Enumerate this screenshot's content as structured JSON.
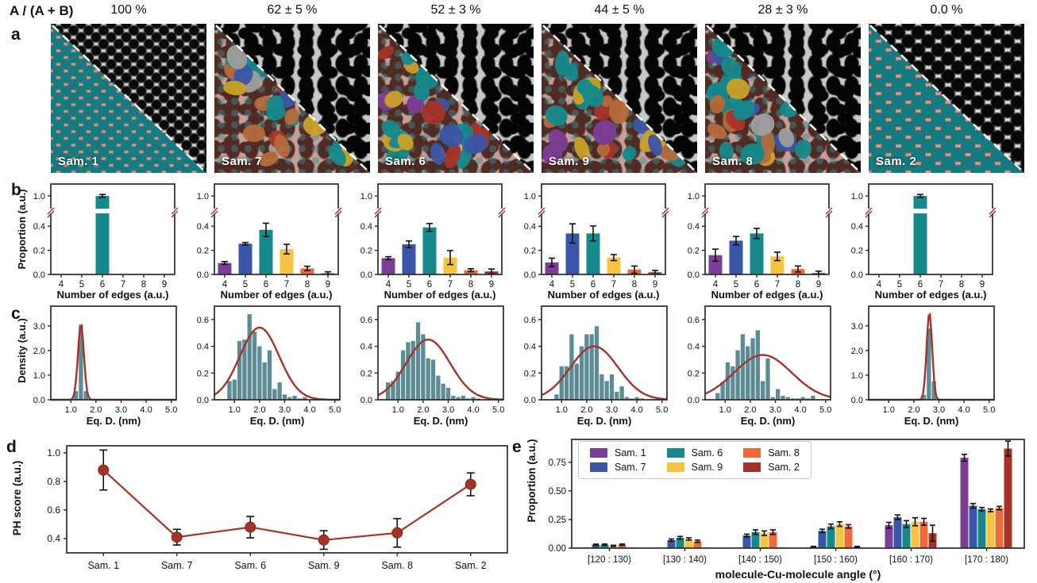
{
  "header": {
    "ratio_label": "A / (A + B)",
    "percentages": [
      "100 %",
      "62 ± 5 %",
      "52 ± 3 %",
      "44 ± 5 %",
      "28 ± 3 %",
      "0.0 %"
    ]
  },
  "panel_letters": {
    "a": "a",
    "b": "b",
    "c": "c",
    "d": "d",
    "e": "e"
  },
  "colors": {
    "samples": {
      "Sam. 1": "#7b3d96",
      "Sam. 7": "#3a56a8",
      "Sam. 6": "#15898c",
      "Sam. 9": "#f7c440",
      "Sam. 8": "#ee6a3b",
      "Sam. 2": "#a43429"
    },
    "edges": {
      "4": "#7b3d96",
      "5": "#3a56a8",
      "6": "#15898c",
      "7": "#f7c440",
      "8": "#ee6a3b",
      "9": "#a43429"
    },
    "histogram_bar": "#5d8c96",
    "fit_curve": "#a43429",
    "axis": "#2a2a2a",
    "error_bar": "#111111",
    "break_mark": "#a43429",
    "overlay_teal": "#137c82"
  },
  "panel_a": {
    "tiles": [
      {
        "label": "Sam. 1",
        "base": "fine",
        "overlay": "uniform",
        "overlay_color": "#137c82"
      },
      {
        "label": "Sam. 7",
        "base": "coarse",
        "overlay": "mixed",
        "blob_colors": [
          "#15898c",
          "#15898c",
          "#15898c",
          "#a43429",
          "#a43429",
          "#c8a227",
          "#c8a227",
          "#3a56a8",
          "#7b3d96",
          "#b56a3a",
          "#9e9e9e"
        ]
      },
      {
        "label": "Sam. 6",
        "base": "coarse",
        "overlay": "mixed",
        "blob_colors": [
          "#15898c",
          "#15898c",
          "#15898c",
          "#15898c",
          "#a43429",
          "#a43429",
          "#c8a227",
          "#c8a227",
          "#3a56a8",
          "#7b3d96"
        ]
      },
      {
        "label": "Sam. 9",
        "base": "coarse",
        "overlay": "mixed",
        "blob_colors": [
          "#15898c",
          "#15898c",
          "#15898c",
          "#a43429",
          "#a43429",
          "#c8a227",
          "#3a56a8",
          "#b56a3a",
          "#7b3d96"
        ]
      },
      {
        "label": "Sam. 8",
        "base": "coarse",
        "overlay": "mixed",
        "blob_colors": [
          "#15898c",
          "#15898c",
          "#a43429",
          "#b56a3a",
          "#b56a3a",
          "#c8a227",
          "#3a56a8",
          "#9e9e9e",
          "#7b3d96"
        ]
      },
      {
        "label": "Sam. 2",
        "base": "round",
        "overlay": "uniform",
        "overlay_color": "#137c82"
      }
    ]
  },
  "chart_data": [
    {
      "panel": "b",
      "type": "bar",
      "sample": "Sam. 1",
      "categories": [
        4,
        5,
        6,
        7,
        8,
        9
      ],
      "values": [
        0,
        0,
        1.0,
        0,
        0,
        0
      ],
      "errors": [
        0,
        0,
        0.012,
        0,
        0,
        0
      ],
      "xlabel": "Number of edges (a.u.)",
      "ylabel": "Proportion (a.u.)",
      "yticks": [
        0.0,
        0.2,
        0.4,
        1.0
      ],
      "axis_break": [
        0.5,
        0.9
      ]
    },
    {
      "panel": "b",
      "type": "bar",
      "sample": "Sam. 7",
      "categories": [
        4,
        5,
        6,
        7,
        8,
        9
      ],
      "values": [
        0.095,
        0.255,
        0.37,
        0.21,
        0.05,
        0.01
      ],
      "errors": [
        0.012,
        0.01,
        0.055,
        0.04,
        0.018,
        0.012
      ],
      "xlabel": "Number of edges (a.u.)",
      "yticks": [
        0.0,
        0.2,
        0.4,
        1.0
      ],
      "axis_break": [
        0.5,
        0.9
      ]
    },
    {
      "panel": "b",
      "type": "bar",
      "sample": "Sam. 6",
      "categories": [
        4,
        5,
        6,
        7,
        8,
        9
      ],
      "values": [
        0.135,
        0.25,
        0.39,
        0.14,
        0.035,
        0.025
      ],
      "errors": [
        0.012,
        0.028,
        0.032,
        0.058,
        0.012,
        0.02
      ],
      "xlabel": "Number of edges (a.u.)",
      "yticks": [
        0.0,
        0.2,
        0.4,
        1.0
      ],
      "axis_break": [
        0.5,
        0.9
      ]
    },
    {
      "panel": "b",
      "type": "bar",
      "sample": "Sam. 9",
      "categories": [
        4,
        5,
        6,
        7,
        8,
        9
      ],
      "values": [
        0.1,
        0.34,
        0.34,
        0.14,
        0.04,
        0.018
      ],
      "errors": [
        0.035,
        0.08,
        0.062,
        0.025,
        0.03,
        0.015
      ],
      "xlabel": "Number of edges (a.u.)",
      "yticks": [
        0.0,
        0.2,
        0.4,
        1.0
      ],
      "axis_break": [
        0.5,
        0.9
      ]
    },
    {
      "panel": "b",
      "type": "bar",
      "sample": "Sam. 8",
      "categories": [
        4,
        5,
        6,
        7,
        8,
        9
      ],
      "values": [
        0.16,
        0.28,
        0.34,
        0.15,
        0.045,
        0.012
      ],
      "errors": [
        0.05,
        0.035,
        0.042,
        0.035,
        0.025,
        0.015
      ],
      "xlabel": "Number of edges (a.u.)",
      "yticks": [
        0.0,
        0.2,
        0.4,
        1.0
      ],
      "axis_break": [
        0.5,
        0.9
      ]
    },
    {
      "panel": "b",
      "type": "bar",
      "sample": "Sam. 2",
      "categories": [
        4,
        5,
        6,
        7,
        8,
        9
      ],
      "values": [
        0,
        0,
        1.0,
        0,
        0,
        0
      ],
      "errors": [
        0,
        0,
        0.012,
        0,
        0,
        0
      ],
      "xlabel": "Number of edges (a.u.)",
      "yticks": [
        0.0,
        0.2,
        0.4,
        1.0
      ],
      "axis_break": [
        0.5,
        0.9
      ]
    },
    {
      "panel": "c",
      "type": "histogram",
      "sample": "Sam. 1",
      "bin_start": 1.1,
      "bin_width": 0.2,
      "heights": [
        0.35,
        3.05,
        0.35
      ],
      "gauss": {
        "amp": 3.05,
        "mu": 1.4,
        "sigma": 0.12
      },
      "xlabel": "Eq. D. (nm)",
      "ylabel": "Density (a.u.)",
      "xticks": [
        1.0,
        2.0,
        3.0,
        4.0,
        5.0
      ],
      "yticks": [
        0.0,
        1.0,
        2.0,
        3.0
      ],
      "ymax": 3.8,
      "xlim": [
        0.2,
        5.2
      ]
    },
    {
      "panel": "c",
      "type": "histogram",
      "sample": "Sam. 7",
      "bin_start": 0.7,
      "bin_width": 0.2,
      "heights": [
        0.14,
        0.15,
        0.44,
        0.45,
        0.64,
        0.51,
        0.4,
        0.28,
        0.37,
        0.08,
        0.13,
        0.04,
        0.02,
        0.03,
        0.01,
        0.02
      ],
      "gauss": {
        "amp": 0.54,
        "mu": 2.0,
        "sigma": 0.78
      },
      "xlabel": "Eq. D. (nm)",
      "xticks": [
        1.0,
        2.0,
        3.0,
        4.0,
        5.0
      ],
      "yticks": [
        0.0,
        0.2,
        0.4,
        0.6
      ],
      "ymax": 0.7,
      "xlim": [
        0.2,
        5.2
      ]
    },
    {
      "panel": "c",
      "type": "histogram",
      "sample": "Sam. 6",
      "bin_start": 0.5,
      "bin_width": 0.2,
      "heights": [
        0.13,
        0.14,
        0.21,
        0.37,
        0.43,
        0.44,
        0.58,
        0.49,
        0.31,
        0.3,
        0.18,
        0.12,
        0.09,
        0.03,
        0.02,
        0.03,
        0.01,
        0.02,
        0.01
      ],
      "gauss": {
        "amp": 0.45,
        "mu": 2.2,
        "sigma": 0.88
      },
      "xlabel": "Eq. D. (nm)",
      "xticks": [
        1.0,
        2.0,
        3.0,
        4.0,
        5.0
      ],
      "yticks": [
        0.0,
        0.2,
        0.4,
        0.6
      ],
      "ymax": 0.7,
      "xlim": [
        0.2,
        5.2
      ]
    },
    {
      "panel": "c",
      "type": "histogram",
      "sample": "Sam. 9",
      "bin_start": 0.7,
      "bin_width": 0.2,
      "heights": [
        0.04,
        0.25,
        0.25,
        0.49,
        0.27,
        0.4,
        0.49,
        0.49,
        0.55,
        0.19,
        0.14,
        0.19,
        0.06,
        0.1,
        0.02,
        0.01,
        0.02,
        0.01
      ],
      "gauss": {
        "amp": 0.4,
        "mu": 2.3,
        "sigma": 0.95
      },
      "xlabel": "Eq. D. (nm)",
      "xticks": [
        1.0,
        2.0,
        3.0,
        4.0,
        5.0
      ],
      "yticks": [
        0.0,
        0.2,
        0.4,
        0.6
      ],
      "ymax": 0.7,
      "xlim": [
        0.2,
        5.2
      ]
    },
    {
      "panel": "c",
      "type": "histogram",
      "sample": "Sam. 8",
      "bin_start": 0.6,
      "bin_width": 0.2,
      "heights": [
        0.05,
        0.13,
        0.28,
        0.25,
        0.37,
        0.49,
        0.4,
        0.46,
        0.52,
        0.14,
        0.31,
        0.02,
        0.08,
        0.03,
        0.02,
        0.01,
        0.01,
        0.02,
        0.01,
        0.03
      ],
      "gauss": {
        "amp": 0.335,
        "mu": 2.5,
        "sigma": 1.15
      },
      "xlabel": "Eq. D. (nm)",
      "xticks": [
        1.0,
        2.0,
        3.0,
        4.0,
        5.0
      ],
      "yticks": [
        0.0,
        0.2,
        0.4,
        0.6
      ],
      "ymax": 0.7,
      "xlim": [
        0.2,
        5.2
      ]
    },
    {
      "panel": "c",
      "type": "histogram",
      "sample": "Sam. 2",
      "bin_start": 2.3,
      "bin_width": 0.2,
      "heights": [
        0.2,
        2.9,
        0.75
      ],
      "gauss": {
        "amp": 3.55,
        "mu": 2.62,
        "sigma": 0.11
      },
      "xlabel": "Eq. D. (nm)",
      "xticks": [
        1.0,
        2.0,
        3.0,
        4.0,
        5.0
      ],
      "yticks": [
        0.0,
        1.0,
        2.0,
        3.0
      ],
      "ymax": 3.8,
      "xlim": [
        0.2,
        5.2
      ]
    },
    {
      "panel": "d",
      "type": "line",
      "categories": [
        "Sam. 1",
        "Sam. 7",
        "Sam. 6",
        "Sam. 9",
        "Sam. 8",
        "Sam. 2"
      ],
      "values": [
        0.88,
        0.41,
        0.48,
        0.39,
        0.44,
        0.78
      ],
      "errors": [
        0.14,
        0.055,
        0.075,
        0.065,
        0.1,
        0.08
      ],
      "ylabel": "PH score (a.u.)",
      "yticks": [
        0.4,
        0.6,
        0.8,
        1.0
      ],
      "ylim": [
        0.3,
        1.05
      ]
    },
    {
      "panel": "e",
      "type": "grouped-bar",
      "categories": [
        "[120 : 130)",
        "[130 : 140)",
        "[140 : 150)",
        "[150 : 160)",
        "[160 : 170)",
        "[170 : 180)"
      ],
      "series": [
        {
          "name": "Sam. 1",
          "values": [
            0.005,
            0.005,
            0.005,
            0.01,
            0.2,
            0.79
          ],
          "errors": [
            0.003,
            0.003,
            0.003,
            0.005,
            0.025,
            0.03
          ]
        },
        {
          "name": "Sam. 7",
          "values": [
            0.03,
            0.07,
            0.11,
            0.15,
            0.27,
            0.37
          ],
          "errors": [
            0.005,
            0.01,
            0.012,
            0.015,
            0.02,
            0.02
          ]
        },
        {
          "name": "Sam. 6",
          "values": [
            0.03,
            0.09,
            0.14,
            0.19,
            0.21,
            0.34
          ],
          "errors": [
            0.005,
            0.012,
            0.02,
            0.02,
            0.03,
            0.015
          ]
        },
        {
          "name": "Sam. 9",
          "values": [
            0.02,
            0.08,
            0.13,
            0.21,
            0.23,
            0.33
          ],
          "errors": [
            0.005,
            0.01,
            0.02,
            0.02,
            0.035,
            0.012
          ]
        },
        {
          "name": "Sam. 8",
          "values": [
            0.03,
            0.06,
            0.14,
            0.19,
            0.23,
            0.35
          ],
          "errors": [
            0.005,
            0.01,
            0.02,
            0.015,
            0.03,
            0.015
          ]
        },
        {
          "name": "Sam. 2",
          "values": [
            0.005,
            0.005,
            0.005,
            0.01,
            0.13,
            0.87
          ],
          "errors": [
            0.003,
            0.003,
            0.003,
            0.005,
            0.07,
            0.065
          ]
        }
      ],
      "legend_order": [
        "Sam. 1",
        "Sam. 7",
        "Sam. 6",
        "Sam. 9",
        "Sam. 8",
        "Sam. 2"
      ],
      "xlabel": "molecule-Cu-molecule angle (°)",
      "ylabel": "Proportion (a.u.)",
      "yticks": [
        0.0,
        0.25,
        0.5,
        0.75
      ],
      "ylim": [
        0,
        0.95
      ]
    }
  ]
}
